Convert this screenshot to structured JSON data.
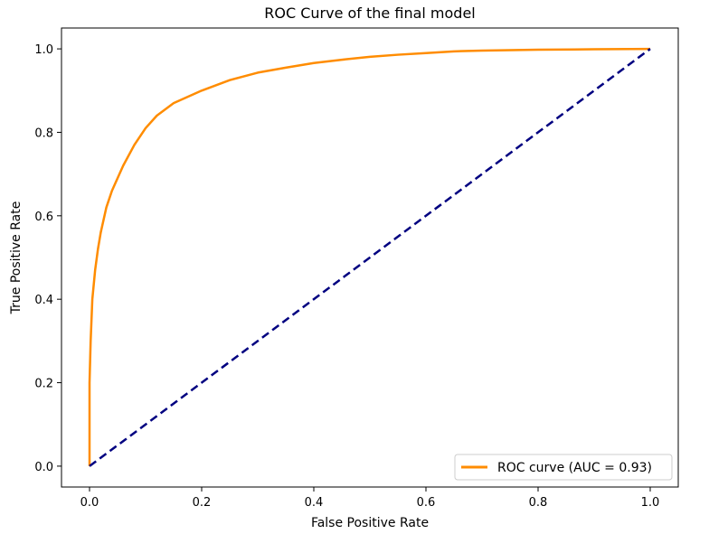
{
  "chart_data": {
    "type": "line",
    "title": "ROC Curve of the final model",
    "xlabel": "False Positive Rate",
    "ylabel": "True Positive Rate",
    "xlim": [
      -0.05,
      1.05
    ],
    "ylim": [
      -0.05,
      1.05
    ],
    "x_ticks": [
      "0.0",
      "0.2",
      "0.4",
      "0.6",
      "0.8",
      "1.0"
    ],
    "y_ticks": [
      "0.0",
      "0.2",
      "0.4",
      "0.6",
      "0.8",
      "1.0"
    ],
    "grid": false,
    "legend_position": "lower-right",
    "series": [
      {
        "name": "ROC curve (AUC = 0.93)",
        "color": "#ff8c00",
        "line_style": "solid",
        "x": [
          0.0,
          0.0,
          0.002,
          0.005,
          0.01,
          0.015,
          0.02,
          0.03,
          0.04,
          0.05,
          0.06,
          0.08,
          0.1,
          0.12,
          0.15,
          0.2,
          0.25,
          0.3,
          0.35,
          0.4,
          0.45,
          0.5,
          0.55,
          0.6,
          0.65,
          0.7,
          0.8,
          0.9,
          1.0
        ],
        "y": [
          0.0,
          0.2,
          0.3,
          0.4,
          0.47,
          0.52,
          0.56,
          0.62,
          0.66,
          0.69,
          0.72,
          0.77,
          0.81,
          0.84,
          0.87,
          0.9,
          0.925,
          0.943,
          0.955,
          0.966,
          0.974,
          0.981,
          0.986,
          0.99,
          0.994,
          0.996,
          0.998,
          0.999,
          1.0
        ]
      },
      {
        "name": "",
        "color": "#000080",
        "line_style": "dashed",
        "x": [
          0.0,
          1.0
        ],
        "y": [
          0.0,
          1.0
        ]
      }
    ]
  }
}
